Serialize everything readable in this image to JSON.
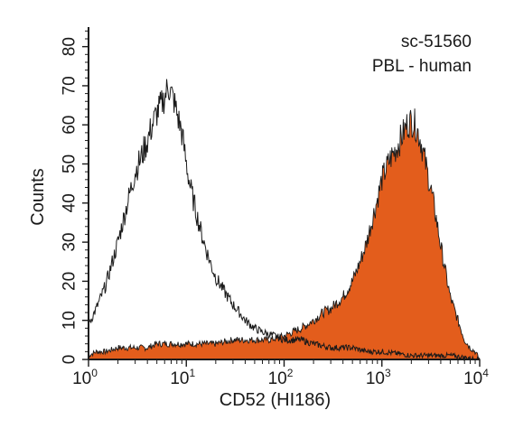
{
  "chart_data": {
    "type": "area",
    "xlabel": "CD52 (HI186)",
    "ylabel": "Counts",
    "x_scale": "log",
    "xlim": [
      1,
      10000
    ],
    "ylim": [
      0,
      85
    ],
    "x_ticks": [
      {
        "base": "10",
        "exp": "0",
        "value": 1
      },
      {
        "base": "10",
        "exp": "1",
        "value": 10
      },
      {
        "base": "10",
        "exp": "2",
        "value": 100
      },
      {
        "base": "10",
        "exp": "3",
        "value": 1000
      },
      {
        "base": "10",
        "exp": "4",
        "value": 10000
      }
    ],
    "y_ticks": [
      "0",
      "10",
      "20",
      "30",
      "40",
      "50",
      "60",
      "70",
      "80"
    ],
    "annotations": [
      "sc-51560",
      "PBL - human"
    ],
    "grid": false,
    "series": [
      {
        "style": "outline",
        "color": "#1a1a1a",
        "points": [
          [
            1.0,
            9
          ],
          [
            1.2,
            13
          ],
          [
            1.5,
            19
          ],
          [
            2.0,
            30
          ],
          [
            2.5,
            40
          ],
          [
            3.0,
            48
          ],
          [
            3.5,
            52
          ],
          [
            4.0,
            56
          ],
          [
            4.5,
            60
          ],
          [
            5.0,
            63
          ],
          [
            5.5,
            65
          ],
          [
            6.0,
            67
          ],
          [
            6.5,
            70
          ],
          [
            7.0,
            68
          ],
          [
            7.5,
            66
          ],
          [
            8.0,
            63
          ],
          [
            9.0,
            58
          ],
          [
            10.0,
            50
          ],
          [
            11.0,
            44
          ],
          [
            12.0,
            40
          ],
          [
            14.0,
            33
          ],
          [
            16.0,
            28
          ],
          [
            18.0,
            24
          ],
          [
            20.0,
            21
          ],
          [
            25.0,
            17
          ],
          [
            30.0,
            14
          ],
          [
            35.0,
            12
          ],
          [
            40.0,
            10
          ],
          [
            50.0,
            8
          ],
          [
            60.0,
            7
          ],
          [
            80.0,
            6
          ],
          [
            100.0,
            5
          ],
          [
            150.0,
            5
          ],
          [
            200.0,
            4
          ],
          [
            300.0,
            3
          ],
          [
            500.0,
            3
          ],
          [
            700.0,
            2
          ],
          [
            1000.0,
            2
          ],
          [
            2000.0,
            1
          ],
          [
            5000.0,
            1
          ],
          [
            10000.0,
            0
          ]
        ]
      },
      {
        "style": "filled",
        "color": "#e35d1c",
        "points": [
          [
            1.0,
            1
          ],
          [
            1.2,
            2
          ],
          [
            1.5,
            2
          ],
          [
            2.0,
            3
          ],
          [
            3.0,
            3
          ],
          [
            4.0,
            3
          ],
          [
            5.0,
            4
          ],
          [
            7.0,
            4
          ],
          [
            10.0,
            4
          ],
          [
            20.0,
            4
          ],
          [
            30.0,
            5
          ],
          [
            50.0,
            5
          ],
          [
            70.0,
            5
          ],
          [
            100.0,
            6
          ],
          [
            150.0,
            8
          ],
          [
            200.0,
            10
          ],
          [
            250.0,
            12
          ],
          [
            300.0,
            13
          ],
          [
            400.0,
            16
          ],
          [
            500.0,
            20
          ],
          [
            600.0,
            25
          ],
          [
            700.0,
            30
          ],
          [
            800.0,
            36
          ],
          [
            900.0,
            41
          ],
          [
            1000.0,
            46
          ],
          [
            1200.0,
            51
          ],
          [
            1400.0,
            54
          ],
          [
            1600.0,
            57
          ],
          [
            1800.0,
            60
          ],
          [
            2000.0,
            61
          ],
          [
            2200.0,
            60
          ],
          [
            2500.0,
            56
          ],
          [
            2800.0,
            50
          ],
          [
            3200.0,
            43
          ],
          [
            3600.0,
            36
          ],
          [
            4000.0,
            29
          ],
          [
            4500.0,
            22
          ],
          [
            5000.0,
            16
          ],
          [
            6000.0,
            10
          ],
          [
            7000.0,
            5
          ],
          [
            8000.0,
            3
          ],
          [
            9000.0,
            2
          ],
          [
            10000.0,
            0
          ]
        ]
      }
    ]
  }
}
